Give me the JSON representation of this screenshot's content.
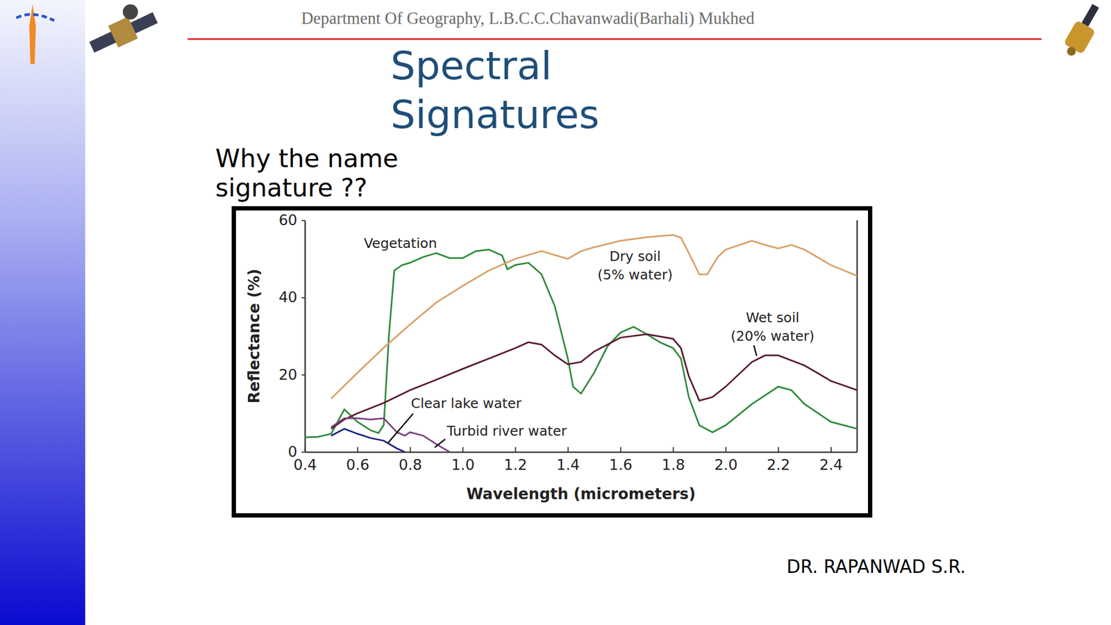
{
  "slide": {
    "header": "Department Of Geography, L.B.C.C.Chavanwadi(Barhali) Mukhed",
    "title": "Spectral Signatures",
    "question": "Why the name signature ??",
    "author": "DR. RAPANWAD S.R."
  },
  "chart_data": {
    "type": "line",
    "x_label": "Wavelength (micrometers)",
    "y_label": "Reflectance (%)",
    "xlim": [
      0.4,
      2.5
    ],
    "ylim": [
      0,
      60
    ],
    "xticks": [
      0.4,
      0.6,
      0.8,
      {
        "value": 1,
        "label": "1.0"
      },
      1.2,
      1.4,
      1.6,
      1.8,
      {
        "value": 2,
        "label": "2.0"
      },
      2.2,
      2.4
    ],
    "yticks": [
      0,
      20,
      40,
      60
    ],
    "grid": false,
    "series": [
      {
        "name": "Vegetation",
        "color": "#2e8b3a",
        "x": [
          0.4,
          0.45,
          0.5,
          0.55,
          0.6,
          0.65,
          0.68,
          0.7,
          0.72,
          0.74,
          0.77,
          0.8,
          0.85,
          0.9,
          0.95,
          1.0,
          1.05,
          1.1,
          1.15,
          1.17,
          1.2,
          1.25,
          1.3,
          1.35,
          1.4,
          1.42,
          1.45,
          1.5,
          1.55,
          1.6,
          1.65,
          1.7,
          1.75,
          1.8,
          1.83,
          1.86,
          1.9,
          1.95,
          2.0,
          2.1,
          2.2,
          2.25,
          2.3,
          2.4,
          2.5
        ],
        "values": [
          3.8,
          3.9,
          4.7,
          11,
          7.8,
          5.6,
          4.9,
          7,
          30.5,
          47,
          48.4,
          49,
          50.5,
          51.5,
          50.2,
          50.2,
          52,
          52.4,
          50.9,
          47.3,
          48.4,
          49,
          46,
          37.8,
          24.2,
          16.9,
          15.1,
          20.5,
          27.3,
          30.9,
          32.4,
          30.5,
          28.4,
          26.9,
          24.2,
          14.2,
          6.9,
          5.1,
          6.9,
          12.4,
          16.9,
          16,
          12.4,
          7.8,
          6
        ]
      },
      {
        "name": "Dry soil (5% water)",
        "color": "#d9a066",
        "x": [
          0.5,
          0.6,
          0.7,
          0.8,
          0.9,
          1.0,
          1.1,
          1.2,
          1.3,
          1.4,
          1.45,
          1.5,
          1.6,
          1.7,
          1.8,
          1.83,
          1.86,
          1.9,
          1.93,
          1.97,
          2.0,
          2.1,
          2.15,
          2.2,
          2.25,
          2.3,
          2.4,
          2.5
        ],
        "values": [
          13.8,
          20.5,
          27,
          33,
          38.7,
          43,
          47,
          50,
          52,
          50,
          52,
          53,
          54.7,
          55.6,
          56.2,
          55.5,
          51.5,
          46,
          46,
          50.5,
          52.4,
          54.7,
          53.6,
          52.7,
          53.6,
          52.4,
          48.4,
          45.6
        ]
      },
      {
        "name": "Wet soil (20% water)",
        "color": "#5a1a2e",
        "x": [
          0.5,
          0.55,
          0.6,
          0.7,
          0.8,
          0.9,
          1.0,
          1.1,
          1.2,
          1.25,
          1.3,
          1.35,
          1.4,
          1.45,
          1.5,
          1.6,
          1.7,
          1.8,
          1.83,
          1.86,
          1.9,
          1.95,
          2.0,
          2.1,
          2.15,
          2.2,
          2.3,
          2.4,
          2.5
        ],
        "values": [
          6,
          8.4,
          10,
          12.7,
          16,
          18.7,
          21.5,
          24.2,
          26.9,
          28.4,
          27.8,
          25,
          22.7,
          23.3,
          26,
          29.6,
          30.5,
          29.3,
          26.9,
          19.6,
          13.3,
          14.2,
          16.9,
          23.3,
          25,
          25,
          22.4,
          18.4,
          16
        ]
      },
      {
        "name": "Clear lake water",
        "color": "#1a237e",
        "x": [
          0.5,
          0.55,
          0.6,
          0.65,
          0.7,
          0.75,
          0.78
        ],
        "values": [
          4.2,
          6,
          4.7,
          3.6,
          2.9,
          0.9,
          0
        ]
      },
      {
        "name": "Turbid river water",
        "color": "#7b3f7f",
        "x": [
          0.5,
          0.55,
          0.6,
          0.65,
          0.7,
          0.75,
          0.78,
          0.8,
          0.85,
          0.9,
          0.95
        ],
        "values": [
          6.4,
          8.7,
          8.7,
          8.4,
          8.7,
          5.1,
          4.2,
          5.1,
          4.2,
          2,
          0
        ]
      }
    ]
  }
}
